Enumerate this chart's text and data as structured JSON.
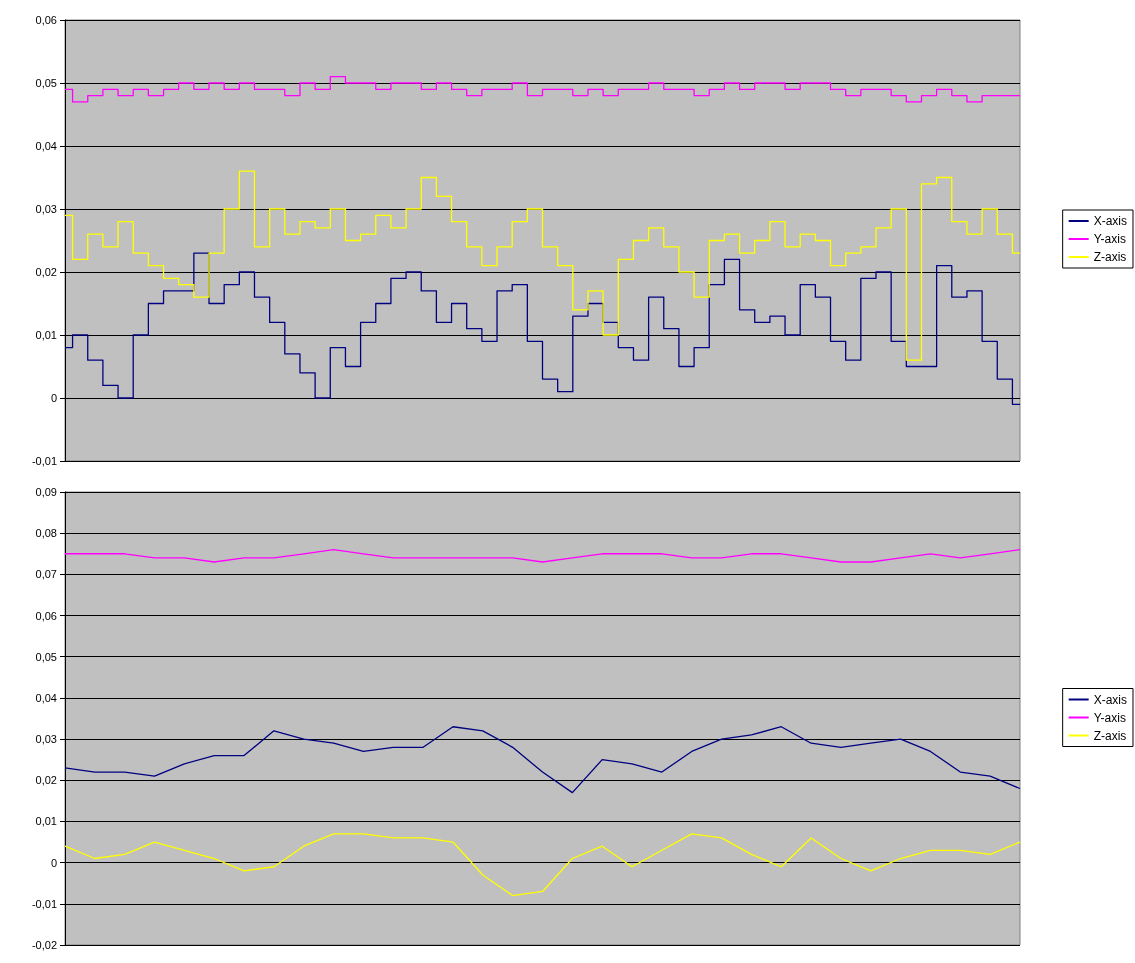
{
  "chart_data": [
    {
      "type": "step",
      "categories": [
        null,
        null,
        null,
        null,
        null,
        null,
        null,
        null,
        null,
        null,
        null,
        null,
        null,
        null,
        null,
        null,
        null,
        null,
        null,
        null,
        null,
        null,
        null,
        null,
        null,
        null,
        null,
        null,
        null,
        null,
        null,
        null,
        null,
        null,
        null,
        null,
        null,
        null,
        null,
        null,
        null,
        null,
        null,
        null,
        null,
        null,
        null,
        null,
        null,
        null,
        null,
        null,
        null,
        null,
        null,
        null,
        null,
        null,
        null,
        null,
        null,
        null,
        null,
        null
      ],
      "series": [
        {
          "name": "X-axis",
          "color": "#000080",
          "values": [
            0.008,
            0.01,
            0.006,
            0.002,
            0.0,
            0.01,
            0.015,
            0.017,
            0.017,
            0.023,
            0.015,
            0.018,
            0.02,
            0.016,
            0.012,
            0.007,
            0.004,
            0.0,
            0.008,
            0.005,
            0.012,
            0.015,
            0.019,
            0.02,
            0.017,
            0.012,
            0.015,
            0.011,
            0.009,
            0.017,
            0.018,
            0.009,
            0.003,
            0.001,
            0.013,
            0.015,
            0.012,
            0.008,
            0.006,
            0.016,
            0.011,
            0.005,
            0.008,
            0.018,
            0.022,
            0.014,
            0.012,
            0.013,
            0.01,
            0.018,
            0.016,
            0.009,
            0.006,
            0.019,
            0.02,
            0.009,
            0.005,
            0.005,
            0.021,
            0.016,
            0.017,
            0.009,
            0.003,
            -0.001
          ]
        },
        {
          "name": "Y-axis",
          "color": "#ff00ff",
          "values": [
            0.049,
            0.047,
            0.048,
            0.049,
            0.048,
            0.049,
            0.048,
            0.049,
            0.05,
            0.049,
            0.05,
            0.049,
            0.05,
            0.049,
            0.049,
            0.048,
            0.05,
            0.049,
            0.051,
            0.05,
            0.05,
            0.049,
            0.05,
            0.05,
            0.049,
            0.05,
            0.049,
            0.048,
            0.049,
            0.049,
            0.05,
            0.048,
            0.049,
            0.049,
            0.048,
            0.049,
            0.048,
            0.049,
            0.049,
            0.05,
            0.049,
            0.049,
            0.048,
            0.049,
            0.05,
            0.049,
            0.05,
            0.05,
            0.049,
            0.05,
            0.05,
            0.049,
            0.048,
            0.049,
            0.049,
            0.048,
            0.047,
            0.048,
            0.049,
            0.048,
            0.047,
            0.048,
            0.048,
            0.048
          ]
        },
        {
          "name": "Z-axis",
          "color": "#ffff00",
          "values": [
            0.029,
            0.022,
            0.026,
            0.024,
            0.028,
            0.023,
            0.021,
            0.019,
            0.018,
            0.016,
            0.023,
            0.03,
            0.036,
            0.024,
            0.03,
            0.026,
            0.028,
            0.027,
            0.03,
            0.025,
            0.026,
            0.029,
            0.027,
            0.03,
            0.035,
            0.032,
            0.028,
            0.024,
            0.021,
            0.024,
            0.028,
            0.03,
            0.024,
            0.021,
            0.014,
            0.017,
            0.01,
            0.022,
            0.025,
            0.027,
            0.024,
            0.02,
            0.016,
            0.025,
            0.026,
            0.023,
            0.025,
            0.028,
            0.024,
            0.026,
            0.025,
            0.021,
            0.023,
            0.024,
            0.027,
            0.03,
            0.006,
            0.034,
            0.035,
            0.028,
            0.026,
            0.03,
            0.026,
            0.023
          ]
        }
      ],
      "ylim": [
        -0.01,
        0.06
      ],
      "yticks": [
        {
          "value": -0.01,
          "label": "-0,01"
        },
        {
          "value": 0,
          "label": "0"
        },
        {
          "value": 0.01,
          "label": "0,01"
        },
        {
          "value": 0.02,
          "label": "0,02"
        },
        {
          "value": 0.03,
          "label": "0,03"
        },
        {
          "value": 0.04,
          "label": "0,04"
        },
        {
          "value": 0.05,
          "label": "0,05"
        },
        {
          "value": 0.06,
          "label": "0,06"
        }
      ],
      "grid": "y",
      "legend": "right",
      "marker": "none",
      "tick_labels": "y"
    },
    {
      "type": "line",
      "categories": [
        null,
        null,
        null,
        null,
        null,
        null,
        null,
        null,
        null,
        null,
        null,
        null,
        null,
        null,
        null,
        null,
        null,
        null,
        null,
        null,
        null,
        null,
        null,
        null,
        null,
        null,
        null,
        null,
        null,
        null,
        null,
        null,
        null
      ],
      "series": [
        {
          "name": "X-axis",
          "color": "#000080",
          "values": [
            0.023,
            0.022,
            0.022,
            0.021,
            0.024,
            0.026,
            0.026,
            0.032,
            0.03,
            0.029,
            0.027,
            0.028,
            0.028,
            0.033,
            0.032,
            0.028,
            0.022,
            0.017,
            0.025,
            0.024,
            0.022,
            0.027,
            0.03,
            0.031,
            0.033,
            0.029,
            0.028,
            0.029,
            0.03,
            0.027,
            0.022,
            0.021,
            0.018
          ]
        },
        {
          "name": "Y-axis",
          "color": "#ff00ff",
          "values": [
            0.075,
            0.075,
            0.075,
            0.074,
            0.074,
            0.073,
            0.074,
            0.074,
            0.075,
            0.076,
            0.075,
            0.074,
            0.074,
            0.074,
            0.074,
            0.074,
            0.073,
            0.074,
            0.075,
            0.075,
            0.075,
            0.074,
            0.074,
            0.075,
            0.075,
            0.074,
            0.073,
            0.073,
            0.074,
            0.075,
            0.074,
            0.075,
            0.076
          ]
        },
        {
          "name": "Z-axis",
          "color": "#ffff00",
          "values": [
            0.004,
            0.001,
            0.002,
            0.005,
            0.003,
            0.001,
            -0.002,
            -0.001,
            0.004,
            0.007,
            0.007,
            0.006,
            0.006,
            0.005,
            -0.003,
            -0.008,
            -0.007,
            0.001,
            0.004,
            -0.001,
            0.003,
            0.007,
            0.006,
            0.002,
            -0.001,
            0.006,
            0.001,
            -0.002,
            0.001,
            0.003,
            0.003,
            0.002,
            0.005
          ]
        }
      ],
      "ylim": [
        -0.02,
        0.09
      ],
      "yticks": [
        {
          "value": -0.02,
          "label": "-0,02"
        },
        {
          "value": -0.01,
          "label": "-0,01"
        },
        {
          "value": 0,
          "label": "0"
        },
        {
          "value": 0.01,
          "label": "0,01"
        },
        {
          "value": 0.02,
          "label": "0,02"
        },
        {
          "value": 0.03,
          "label": "0,03"
        },
        {
          "value": 0.04,
          "label": "0,04"
        },
        {
          "value": 0.05,
          "label": "0,05"
        },
        {
          "value": 0.06,
          "label": "0,06"
        },
        {
          "value": 0.07,
          "label": "0,07"
        },
        {
          "value": 0.08,
          "label": "0,08"
        },
        {
          "value": 0.09,
          "label": "0,09"
        }
      ],
      "grid": "y",
      "legend": "right",
      "marker": "none",
      "tick_labels": "y"
    }
  ]
}
